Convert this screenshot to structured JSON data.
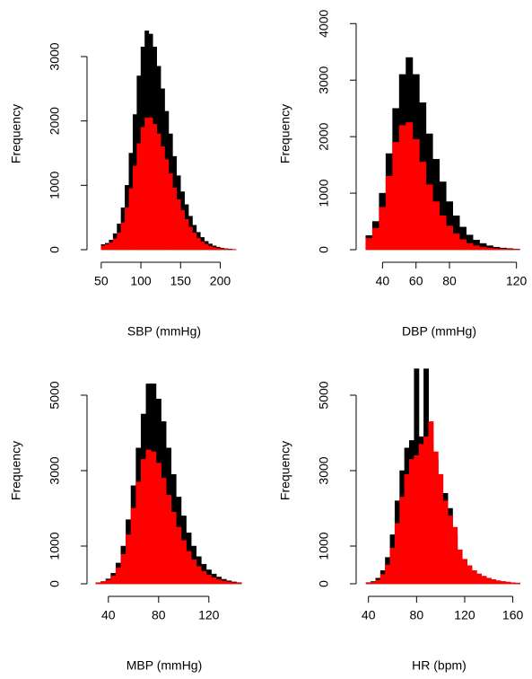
{
  "chart_data": [
    {
      "type": "histogram",
      "x_label": "SBP (mmHg)",
      "y_label": "Frequency",
      "bins": [
        50,
        55,
        60,
        65,
        70,
        75,
        80,
        85,
        90,
        95,
        100,
        105,
        110,
        115,
        120,
        125,
        130,
        135,
        140,
        145,
        150,
        155,
        160,
        165,
        170,
        175,
        180,
        185,
        190,
        195,
        200,
        205,
        210,
        215,
        220
      ],
      "series": [
        {
          "color": "#000000",
          "values": [
            80,
            100,
            150,
            250,
            400,
            650,
            1000,
            1500,
            2100,
            2700,
            3150,
            3400,
            3350,
            3150,
            2850,
            2500,
            2150,
            1800,
            1450,
            1150,
            900,
            700,
            520,
            380,
            270,
            190,
            130,
            90,
            60,
            40,
            25,
            15,
            10,
            5
          ]
        },
        {
          "color": "#ff0000",
          "values": [
            60,
            80,
            110,
            170,
            260,
            420,
            650,
            950,
            1300,
            1650,
            1900,
            2050,
            2050,
            1950,
            1800,
            1600,
            1400,
            1180,
            960,
            780,
            610,
            470,
            350,
            260,
            180,
            120,
            85,
            55,
            35,
            22,
            14,
            8,
            5,
            3
          ]
        }
      ],
      "xlim": [
        40,
        230
      ],
      "xticks": [
        50,
        100,
        150,
        200
      ],
      "ylim": [
        0,
        3600
      ],
      "yticks": [
        0,
        1000,
        2000,
        3000
      ]
    },
    {
      "type": "histogram",
      "x_label": "DBP (mmHg)",
      "y_label": "Frequency",
      "bins": [
        30,
        34,
        38,
        42,
        46,
        50,
        54,
        58,
        62,
        66,
        70,
        74,
        78,
        82,
        86,
        90,
        94,
        98,
        102,
        106,
        110,
        114,
        118,
        122
      ],
      "series": [
        {
          "color": "#000000",
          "values": [
            250,
            500,
            1000,
            1700,
            2500,
            3100,
            3400,
            3100,
            2600,
            2050,
            1600,
            1200,
            850,
            600,
            400,
            260,
            170,
            110,
            70,
            45,
            30,
            20,
            10
          ]
        },
        {
          "color": "#ff0000",
          "values": [
            200,
            380,
            750,
            1300,
            1900,
            2200,
            2250,
            1950,
            1550,
            1150,
            850,
            600,
            420,
            280,
            180,
            110,
            70,
            45,
            30,
            20,
            12,
            8,
            5
          ]
        }
      ],
      "xlim": [
        28,
        125
      ],
      "xticks": [
        40,
        60,
        80,
        120
      ],
      "ylim": [
        0,
        4100
      ],
      "yticks": [
        0,
        1000,
        2000,
        3000,
        4000
      ]
    },
    {
      "type": "histogram",
      "x_label": "MBP (mmHg)",
      "y_label": "Frequency",
      "bins": [
        30,
        34,
        38,
        42,
        46,
        50,
        54,
        58,
        62,
        66,
        70,
        74,
        78,
        82,
        86,
        90,
        94,
        98,
        102,
        106,
        110,
        114,
        118,
        122,
        126,
        130,
        134,
        138,
        142,
        146
      ],
      "series": [
        {
          "color": "#000000",
          "values": [
            30,
            60,
            130,
            280,
            550,
            1000,
            1700,
            2600,
            3600,
            4500,
            5300,
            5300,
            4900,
            4300,
            3600,
            2900,
            2300,
            1800,
            1350,
            1000,
            720,
            520,
            370,
            260,
            180,
            120,
            80,
            50,
            30
          ]
        },
        {
          "color": "#ff0000",
          "values": [
            25,
            50,
            100,
            210,
            420,
            780,
            1300,
            2000,
            2700,
            3300,
            3550,
            3500,
            3200,
            2800,
            2350,
            1900,
            1500,
            1150,
            860,
            640,
            460,
            330,
            230,
            160,
            110,
            75,
            50,
            30,
            20
          ]
        }
      ],
      "xlim": [
        28,
        148
      ],
      "xticks": [
        40,
        80,
        120
      ],
      "ylim": [
        0,
        6000
      ],
      "yticks": [
        0,
        1000,
        3000,
        5000
      ]
    },
    {
      "type": "histogram",
      "x_label": "HR (bpm)",
      "y_label": "Frequency",
      "bins": [
        38,
        42,
        46,
        50,
        54,
        58,
        62,
        66,
        70,
        74,
        78,
        82,
        86,
        90,
        94,
        98,
        102,
        106,
        110,
        114,
        118,
        122,
        126,
        130,
        134,
        138,
        142,
        146,
        150,
        154,
        158,
        162,
        166
      ],
      "series": [
        {
          "color": "#000000",
          "values": [
            30,
            60,
            150,
            350,
            700,
            1300,
            2200,
            3000,
            3600,
            3800,
            5700,
            3900,
            5700,
            3700,
            3300,
            2900,
            2400,
            2000,
            1300,
            900,
            650,
            480,
            350,
            260,
            200,
            150,
            110,
            80,
            60,
            45,
            30,
            20
          ]
        },
        {
          "color": "#ff0000",
          "values": [
            20,
            40,
            100,
            250,
            500,
            950,
            1600,
            2300,
            2900,
            3300,
            3400,
            3700,
            3900,
            4300,
            3500,
            2900,
            2200,
            1800,
            1500,
            900,
            650,
            480,
            350,
            260,
            200,
            150,
            110,
            80,
            60,
            45,
            30,
            20
          ]
        }
      ],
      "xlim": [
        35,
        170
      ],
      "xticks": [
        40,
        80,
        120,
        160
      ],
      "ylim": [
        0,
        6000
      ],
      "yticks": [
        0,
        1000,
        3000,
        5000
      ]
    }
  ]
}
